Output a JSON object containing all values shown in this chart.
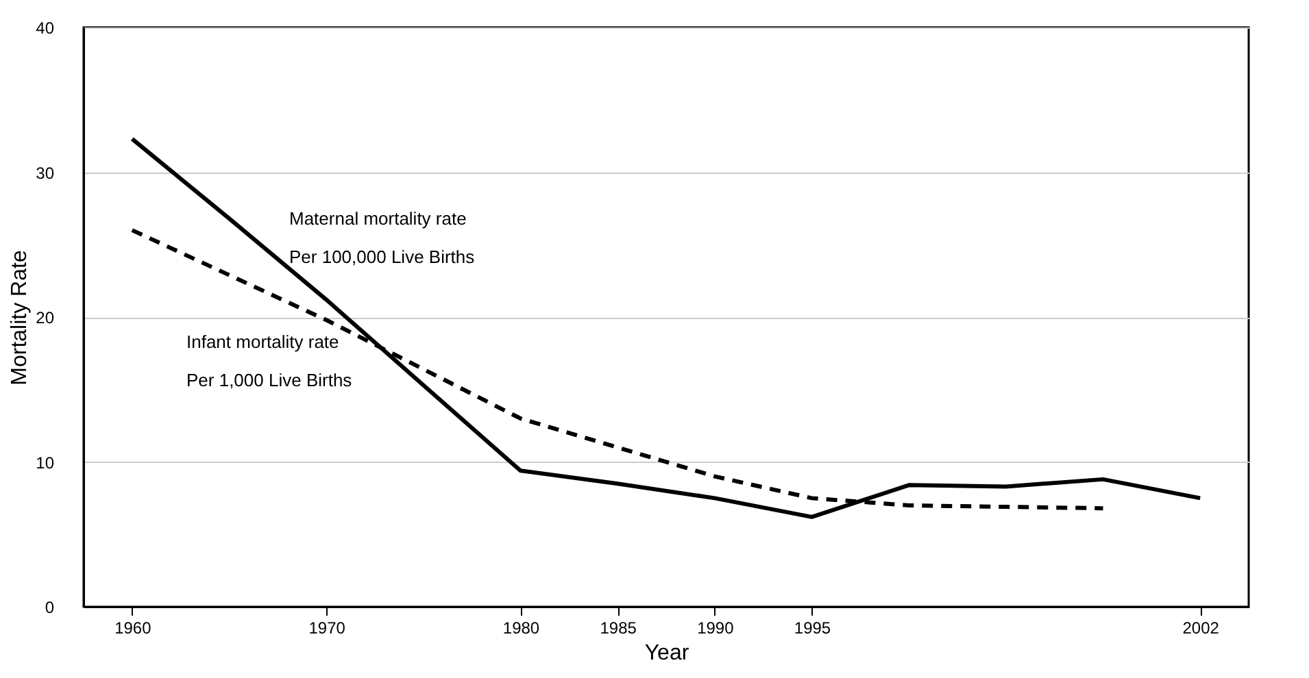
{
  "chart_data": {
    "type": "line",
    "xlabel": "Year",
    "ylabel": "Mortality Rate",
    "categories": [
      "1960",
      null,
      "1970",
      null,
      "1980",
      "1985",
      "1990",
      "1995",
      null,
      null,
      null,
      "2002"
    ],
    "series": [
      {
        "name": "Maternal mortality rate",
        "color": "#000000",
        "line_style": "solid",
        "values": [
          32.3,
          26.8,
          21.2,
          15.3,
          9.4,
          8.5,
          7.5,
          6.2,
          8.4,
          8.3,
          8.8,
          7.5
        ]
      },
      {
        "name": "Infant mortality rate",
        "color": "#000000",
        "line_style": "dashed",
        "values": [
          26.0,
          22.9,
          19.8,
          16.4,
          13.0,
          11.0,
          9.0,
          7.5,
          7.0,
          6.9,
          6.8,
          null
        ]
      }
    ],
    "annotations": [
      "Per 100,000 Live Births",
      "Per 1,000 Live Births"
    ],
    "ylim": [
      0,
      40
    ],
    "yticks": [
      0,
      10,
      20,
      30,
      40
    ],
    "grid": "y"
  }
}
